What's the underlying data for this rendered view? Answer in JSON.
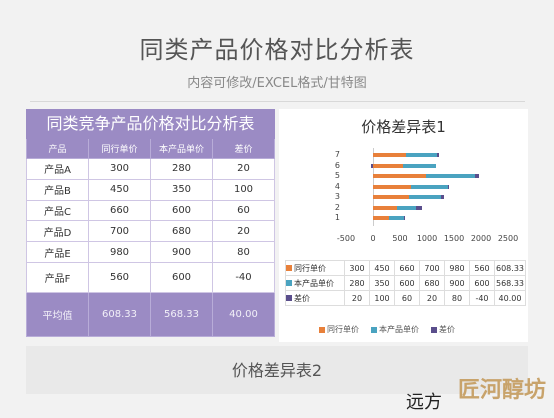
{
  "header": {
    "title": "同类产品价格对比分析表",
    "subtitle": "内容可修改/EXCEL格式/甘特图"
  },
  "table": {
    "title": "同类竞争产品价格对比分析表",
    "columns": [
      "产品",
      "同行单价",
      "本产品单价",
      "差价"
    ],
    "rows": [
      [
        "产品A",
        "300",
        "280",
        "20"
      ],
      [
        "产品B",
        "450",
        "350",
        "100"
      ],
      [
        "产品C",
        "660",
        "600",
        "60"
      ],
      [
        "产品D",
        "700",
        "680",
        "20"
      ],
      [
        "产品E",
        "980",
        "900",
        "80"
      ],
      [
        "产品F",
        "560",
        "600",
        "-40"
      ]
    ],
    "average": [
      "平均值",
      "608.33",
      "568.33",
      "40.00"
    ]
  },
  "chart_data": {
    "type": "bar",
    "title": "价格差异表1",
    "categories": [
      "1",
      "2",
      "3",
      "4",
      "5",
      "6",
      "7"
    ],
    "series": [
      {
        "name": "同行单价",
        "values": [
          300,
          450,
          660,
          700,
          980,
          560,
          608.33
        ],
        "color": "#e8803a"
      },
      {
        "name": "本产品单价",
        "values": [
          280,
          350,
          600,
          680,
          900,
          600,
          568.33
        ],
        "color": "#4aa3c0"
      },
      {
        "name": "差价",
        "values": [
          20,
          100,
          60,
          20,
          80,
          -40,
          40.0
        ],
        "color": "#5a4e8c"
      }
    ],
    "xticks": [
      "-500",
      "0",
      "500",
      "1000",
      "1500",
      "2000",
      "2500"
    ],
    "xlim": [
      -500,
      2500
    ],
    "stacked": true,
    "data_table": [
      {
        "name": "同行单价",
        "values": [
          "300",
          "450",
          "660",
          "700",
          "980",
          "560",
          "608.33"
        ]
      },
      {
        "name": "本产品单价",
        "values": [
          "280",
          "350",
          "600",
          "680",
          "900",
          "600",
          "568.33"
        ]
      },
      {
        "name": "差价",
        "values": [
          "20",
          "100",
          "60",
          "20",
          "80",
          "-40",
          "40.00"
        ]
      }
    ],
    "legend": [
      "同行单价",
      "本产品单价",
      "差价"
    ]
  },
  "bottom": {
    "title": "价格差异表2"
  },
  "watermark": {
    "text1": "远方",
    "text2": "匠河醇坊"
  }
}
